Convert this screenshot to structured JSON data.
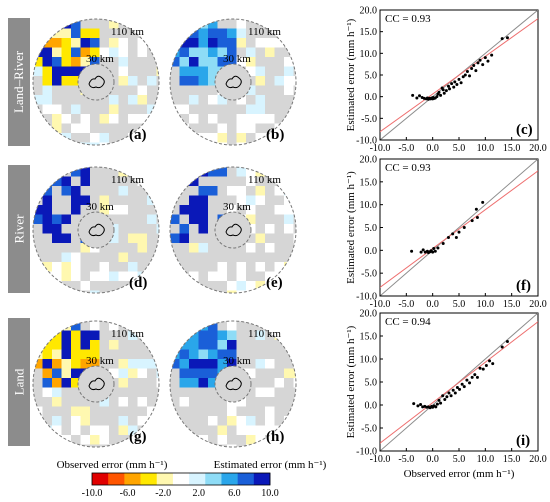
{
  "rows": [
    {
      "label": "Land–River",
      "panels": [
        "(a)",
        "(b)",
        "(c)"
      ],
      "cc": "CC = 0.93"
    },
    {
      "label": "River",
      "panels": [
        "(d)",
        "(e)",
        "(f)"
      ],
      "cc": "CC = 0.93"
    },
    {
      "label": "Land",
      "panels": [
        "(g)",
        "(h)",
        "(i)"
      ],
      "cc": "CC = 0.94"
    }
  ],
  "map_labels": {
    "outer_ring": "110 km",
    "inner_ring": "30 km"
  },
  "bottom_labels": {
    "observed": "Observed error (mm h⁻¹)",
    "estimated": "Estimated error (mm h⁻¹)"
  },
  "colorbar": {
    "ticks": [
      "-10.0",
      "-6.0",
      "-2.0",
      "2.0",
      "6.0",
      "10.0"
    ],
    "min": -10,
    "max": 10,
    "colors": [
      "#e00000",
      "#ff5500",
      "#ffa500",
      "#ffe800",
      "#fff8b0",
      "#ffffff",
      "#d8f4ff",
      "#8edcf6",
      "#2aa6ea",
      "#1a5fd8",
      "#0a18b8"
    ]
  },
  "colors": {
    "map_background": "#d6d6d6",
    "one_to_one_line": "#8c8c8c",
    "regression_line": "#ee6f6f"
  },
  "chart_data": [
    {
      "type": "scatter",
      "title": "CC = 0.93",
      "xlabel": "",
      "ylabel": "Estimated error (mm h⁻¹)",
      "xlim": [
        -10,
        20
      ],
      "ylim": [
        -10,
        20
      ],
      "xticks": [
        "-10.0",
        "-5.0",
        "0.0",
        "5.0",
        "10.0",
        "15.0",
        "20.0"
      ],
      "yticks": [
        "-10.0",
        "-5.0",
        "0.0",
        "5.0",
        "10.0",
        "15.0",
        "20.0"
      ],
      "regression": {
        "slope": 0.87,
        "intercept": 0.6
      },
      "points": [
        [
          -3.8,
          0.3
        ],
        [
          -3.0,
          -0.3
        ],
        [
          -2.5,
          0.2
        ],
        [
          -2.0,
          -0.2
        ],
        [
          -1.6,
          -0.4
        ],
        [
          -1.2,
          -0.5
        ],
        [
          -1.0,
          -0.3
        ],
        [
          -0.8,
          -0.6
        ],
        [
          -0.6,
          -0.4
        ],
        [
          -0.4,
          -0.5
        ],
        [
          -0.2,
          -0.3
        ],
        [
          0.0,
          -0.5
        ],
        [
          0.1,
          -0.2
        ],
        [
          0.3,
          -0.4
        ],
        [
          0.5,
          -0.3
        ],
        [
          0.8,
          0.0
        ],
        [
          1.0,
          0.6
        ],
        [
          1.2,
          1.0
        ],
        [
          1.5,
          0.3
        ],
        [
          1.8,
          2.0
        ],
        [
          2.0,
          1.6
        ],
        [
          2.2,
          0.8
        ],
        [
          2.6,
          1.4
        ],
        [
          3.0,
          2.4
        ],
        [
          3.2,
          1.8
        ],
        [
          3.6,
          3.0
        ],
        [
          4.0,
          2.2
        ],
        [
          4.2,
          3.4
        ],
        [
          4.6,
          2.8
        ],
        [
          5.0,
          4.0
        ],
        [
          5.4,
          3.2
        ],
        [
          5.8,
          4.6
        ],
        [
          6.2,
          5.0
        ],
        [
          6.6,
          5.8
        ],
        [
          7.0,
          4.8
        ],
        [
          7.4,
          6.5
        ],
        [
          7.8,
          7.2
        ],
        [
          8.2,
          6.0
        ],
        [
          8.6,
          7.8
        ],
        [
          9.0,
          8.4
        ],
        [
          9.5,
          7.4
        ],
        [
          10.0,
          9.0
        ],
        [
          10.5,
          8.2
        ],
        [
          11.2,
          9.6
        ],
        [
          13.2,
          13.4
        ],
        [
          14.2,
          13.6
        ]
      ]
    },
    {
      "type": "scatter",
      "title": "CC = 0.93",
      "xlabel": "",
      "ylabel": "Estimated error (mm h⁻¹)",
      "xlim": [
        -10,
        20
      ],
      "ylim": [
        -10,
        20
      ],
      "xticks": [
        "-10.0",
        "-5.0",
        "0.0",
        "5.0",
        "10.0",
        "15.0",
        "20.0"
      ],
      "yticks": [
        "-10.0",
        "-5.0",
        "0.0",
        "5.0",
        "10.0",
        "15.0",
        "20.0"
      ],
      "regression": {
        "slope": 0.85,
        "intercept": 0.4
      },
      "points": [
        [
          -4.0,
          -0.2
        ],
        [
          -2.2,
          -0.4
        ],
        [
          -1.8,
          0.1
        ],
        [
          -1.4,
          -0.4
        ],
        [
          -1.0,
          -0.2
        ],
        [
          -0.8,
          -0.5
        ],
        [
          -0.5,
          -0.3
        ],
        [
          -0.3,
          -0.1
        ],
        [
          0.0,
          -0.4
        ],
        [
          0.2,
          0.4
        ],
        [
          0.5,
          -0.2
        ],
        [
          1.0,
          0.5
        ],
        [
          2.0,
          1.5
        ],
        [
          3.0,
          2.8
        ],
        [
          3.8,
          3.6
        ],
        [
          4.5,
          2.8
        ],
        [
          5.0,
          4.0
        ],
        [
          6.0,
          5.0
        ],
        [
          7.5,
          6.5
        ],
        [
          8.5,
          7.2
        ],
        [
          8.3,
          9.0
        ],
        [
          9.5,
          10.5
        ]
      ]
    },
    {
      "type": "scatter",
      "title": "CC = 0.94",
      "xlabel": "Observed error (mm h⁻¹)",
      "ylabel": "Estimated error (mm h⁻¹)",
      "xlim": [
        -10,
        20
      ],
      "ylim": [
        -10,
        20
      ],
      "xticks": [
        "-10.0",
        "-5.0",
        "0.0",
        "5.0",
        "10.0",
        "15.0",
        "20.0"
      ],
      "yticks": [
        "-10.0",
        "-5.0",
        "0.0",
        "5.0",
        "10.0",
        "15.0",
        "20.0"
      ],
      "regression": {
        "slope": 0.88,
        "intercept": 0.5
      },
      "points": [
        [
          -3.6,
          0.3
        ],
        [
          -2.8,
          -0.2
        ],
        [
          -2.3,
          0.1
        ],
        [
          -1.9,
          -0.4
        ],
        [
          -1.5,
          -0.3
        ],
        [
          -1.1,
          -0.5
        ],
        [
          -0.8,
          -0.4
        ],
        [
          -0.5,
          -0.6
        ],
        [
          -0.2,
          -0.3
        ],
        [
          0.0,
          -0.5
        ],
        [
          0.3,
          -0.2
        ],
        [
          0.6,
          -0.4
        ],
        [
          0.9,
          0.2
        ],
        [
          1.2,
          1.0
        ],
        [
          1.5,
          0.4
        ],
        [
          1.9,
          2.0
        ],
        [
          2.3,
          1.2
        ],
        [
          2.7,
          1.8
        ],
        [
          3.1,
          2.6
        ],
        [
          3.5,
          2.0
        ],
        [
          3.9,
          3.2
        ],
        [
          4.3,
          2.6
        ],
        [
          4.7,
          3.8
        ],
        [
          5.1,
          3.4
        ],
        [
          5.6,
          4.5
        ],
        [
          6.0,
          4.0
        ],
        [
          6.5,
          5.4
        ],
        [
          7.0,
          4.8
        ],
        [
          7.5,
          6.0
        ],
        [
          8.0,
          6.6
        ],
        [
          8.5,
          6.0
        ],
        [
          9.0,
          8.0
        ],
        [
          9.6,
          7.8
        ],
        [
          10.2,
          8.6
        ],
        [
          10.8,
          9.6
        ],
        [
          11.4,
          9.0
        ],
        [
          13.2,
          12.6
        ],
        [
          14.2,
          13.8
        ]
      ]
    }
  ]
}
